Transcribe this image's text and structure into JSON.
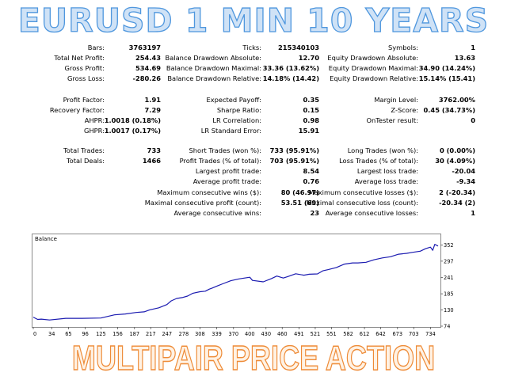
{
  "header": {
    "title": "EURUSD 1 MIN 10 YEARS"
  },
  "footer": {
    "title": "MULTIPAIR PRICE ACTION"
  },
  "stats": {
    "group1": [
      [
        [
          "Bars:",
          "3763197"
        ],
        [
          "Ticks:",
          "215340103"
        ],
        [
          "Symbols:",
          "1"
        ]
      ],
      [
        [
          "Total Net Profit:",
          "254.43"
        ],
        [
          "Balance Drawdown Absolute:",
          "12.70"
        ],
        [
          "Equity Drawdown Absolute:",
          "13.63"
        ]
      ],
      [
        [
          "Gross Profit:",
          "534.69"
        ],
        [
          "Balance Drawdown Maximal:",
          "33.36 (13.62%)"
        ],
        [
          "Equity Drawdown Maximal:",
          "34.90 (14.24%)"
        ]
      ],
      [
        [
          "Gross Loss:",
          "-280.26"
        ],
        [
          "Balance Drawdown Relative:",
          "14.18% (14.42)"
        ],
        [
          "Equity Drawdown Relative:",
          "15.14% (15.41)"
        ]
      ]
    ],
    "group2": [
      [
        [
          "Profit Factor:",
          "1.91"
        ],
        [
          "Expected Payoff:",
          "0.35"
        ],
        [
          "Margin Level:",
          "3762.00%"
        ]
      ],
      [
        [
          "Recovery Factor:",
          "7.29"
        ],
        [
          "Sharpe Ratio:",
          "0.15"
        ],
        [
          "Z-Score:",
          "0.45 (34.73%)"
        ]
      ],
      [
        [
          "AHPR:",
          "1.0018 (0.18%)"
        ],
        [
          "LR Correlation:",
          "0.98"
        ],
        [
          "OnTester result:",
          "0"
        ]
      ],
      [
        [
          "GHPR:",
          "1.0017 (0.17%)"
        ],
        [
          "LR Standard Error:",
          "15.91"
        ],
        [
          "",
          ""
        ]
      ]
    ],
    "group3": [
      [
        [
          "Total Trades:",
          "733"
        ],
        [
          "Short Trades (won %):",
          "733 (95.91%)"
        ],
        [
          "Long Trades (won %):",
          "0 (0.00%)"
        ]
      ],
      [
        [
          "Total Deals:",
          "1466"
        ],
        [
          "Profit Trades (% of total):",
          "703 (95.91%)"
        ],
        [
          "Loss Trades (% of total):",
          "30 (4.09%)"
        ]
      ],
      [
        [
          "",
          ""
        ],
        [
          "Largest profit trade:",
          "8.54"
        ],
        [
          "Largest loss trade:",
          "-20.04"
        ]
      ],
      [
        [
          "",
          ""
        ],
        [
          "Average profit trade:",
          "0.76"
        ],
        [
          "Average loss trade:",
          "-9.34"
        ]
      ],
      [
        [
          "",
          ""
        ],
        [
          "Maximum consecutive wins ($):",
          "80 (46.97)"
        ],
        [
          "Maximum consecutive losses ($):",
          "2 (-20.34)"
        ]
      ],
      [
        [
          "",
          ""
        ],
        [
          "Maximal consecutive profit (count):",
          "53.51 (69)"
        ],
        [
          "Maximal consecutive loss (count):",
          "-20.34 (2)"
        ]
      ],
      [
        [
          "",
          ""
        ],
        [
          "Average consecutive wins:",
          "23"
        ],
        [
          "Average consecutive losses:",
          "1"
        ]
      ]
    ]
  },
  "chart_data": {
    "type": "line",
    "title": "Balance",
    "x_ticks": [
      "0",
      "34",
      "65",
      "96",
      "125",
      "156",
      "187",
      "217",
      "247",
      "278",
      "308",
      "339",
      "370",
      "400",
      "430",
      "460",
      "491",
      "521",
      "551",
      "582",
      "612",
      "642",
      "673",
      "703",
      "734"
    ],
    "y_ticks": [
      "74",
      "130",
      "185",
      "241",
      "297",
      "352"
    ],
    "xlim": [
      0,
      748
    ],
    "ylim": [
      74,
      370
    ],
    "series": [
      {
        "color": "#1a1ab0",
        "x": [
          0,
          8,
          15,
          30,
          60,
          90,
          125,
          150,
          170,
          190,
          205,
          215,
          232,
          247,
          255,
          265,
          275,
          285,
          295,
          308,
          318,
          325,
          330,
          340,
          350,
          365,
          370,
          380,
          400,
          405,
          425,
          440,
          450,
          462,
          470,
          485,
          500,
          510,
          525,
          535,
          545,
          560,
          575,
          590,
          600,
          615,
          630,
          645,
          660,
          675,
          690,
          700,
          715,
          725,
          734,
          738,
          742,
          748
        ],
        "y": [
          102,
          96,
          99,
          98,
          99,
          101,
          104,
          110,
          115,
          122,
          126,
          128,
          137,
          150,
          158,
          168,
          173,
          180,
          185,
          192,
          196,
          198,
          203,
          213,
          222,
          228,
          232,
          238,
          239,
          230,
          227,
          240,
          244,
          239,
          246,
          251,
          248,
          253,
          256,
          262,
          268,
          277,
          284,
          290,
          292,
          296,
          300,
          308,
          314,
          318,
          323,
          328,
          334,
          338,
          345,
          336,
          352,
          348
        ]
      }
    ]
  }
}
